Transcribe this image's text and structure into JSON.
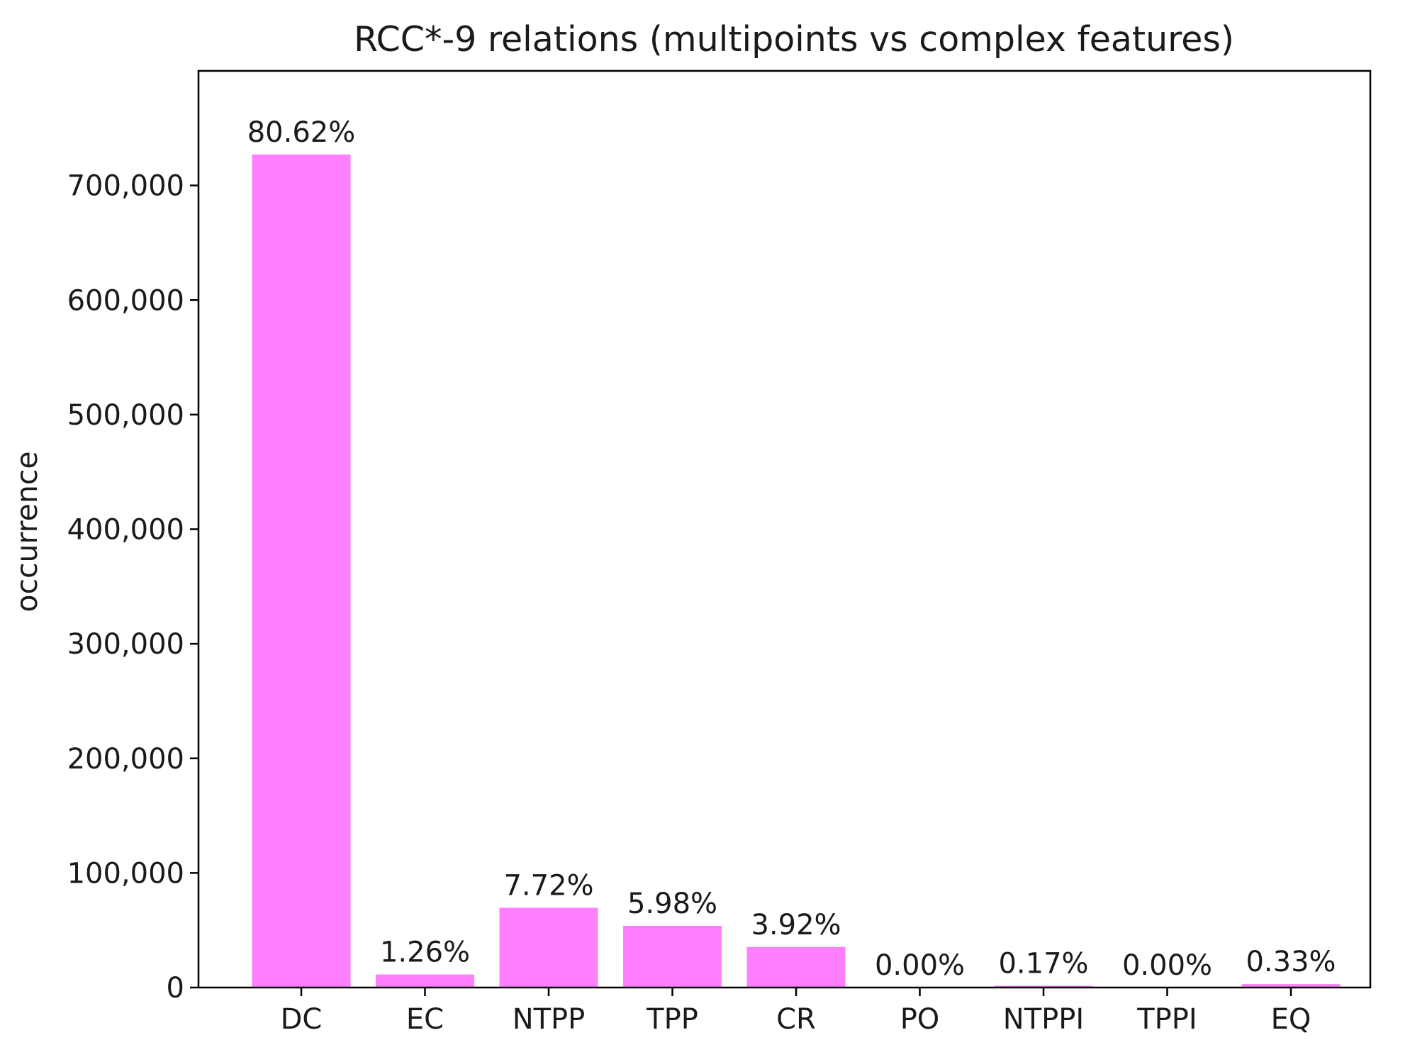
{
  "chart_data": {
    "type": "bar",
    "title": "RCC*-9 relations (multipoints vs complex features)",
    "xlabel": "",
    "ylabel": "occurrence",
    "categories": [
      "DC",
      "EC",
      "NTPP",
      "TPP",
      "CR",
      "PO",
      "NTPPI",
      "TPPI",
      "EQ"
    ],
    "values": [
      727000,
      11400,
      69600,
      53900,
      35400,
      0,
      1500,
      0,
      3000
    ],
    "data_labels": [
      "80.62%",
      "1.26%",
      "7.72%",
      "5.98%",
      "3.92%",
      "0.00%",
      "0.17%",
      "0.00%",
      "0.33%"
    ],
    "ylim": [
      0,
      800000
    ],
    "yticks": [
      0,
      100000,
      200000,
      300000,
      400000,
      500000,
      600000,
      700000
    ],
    "ytick_labels": [
      "0",
      "100,000",
      "200,000",
      "300,000",
      "400,000",
      "500,000",
      "600,000",
      "700,000"
    ],
    "grid": false,
    "colors": {
      "bar": "#ff80ff",
      "axis": "#000000",
      "text": "#1a1a1a"
    }
  }
}
